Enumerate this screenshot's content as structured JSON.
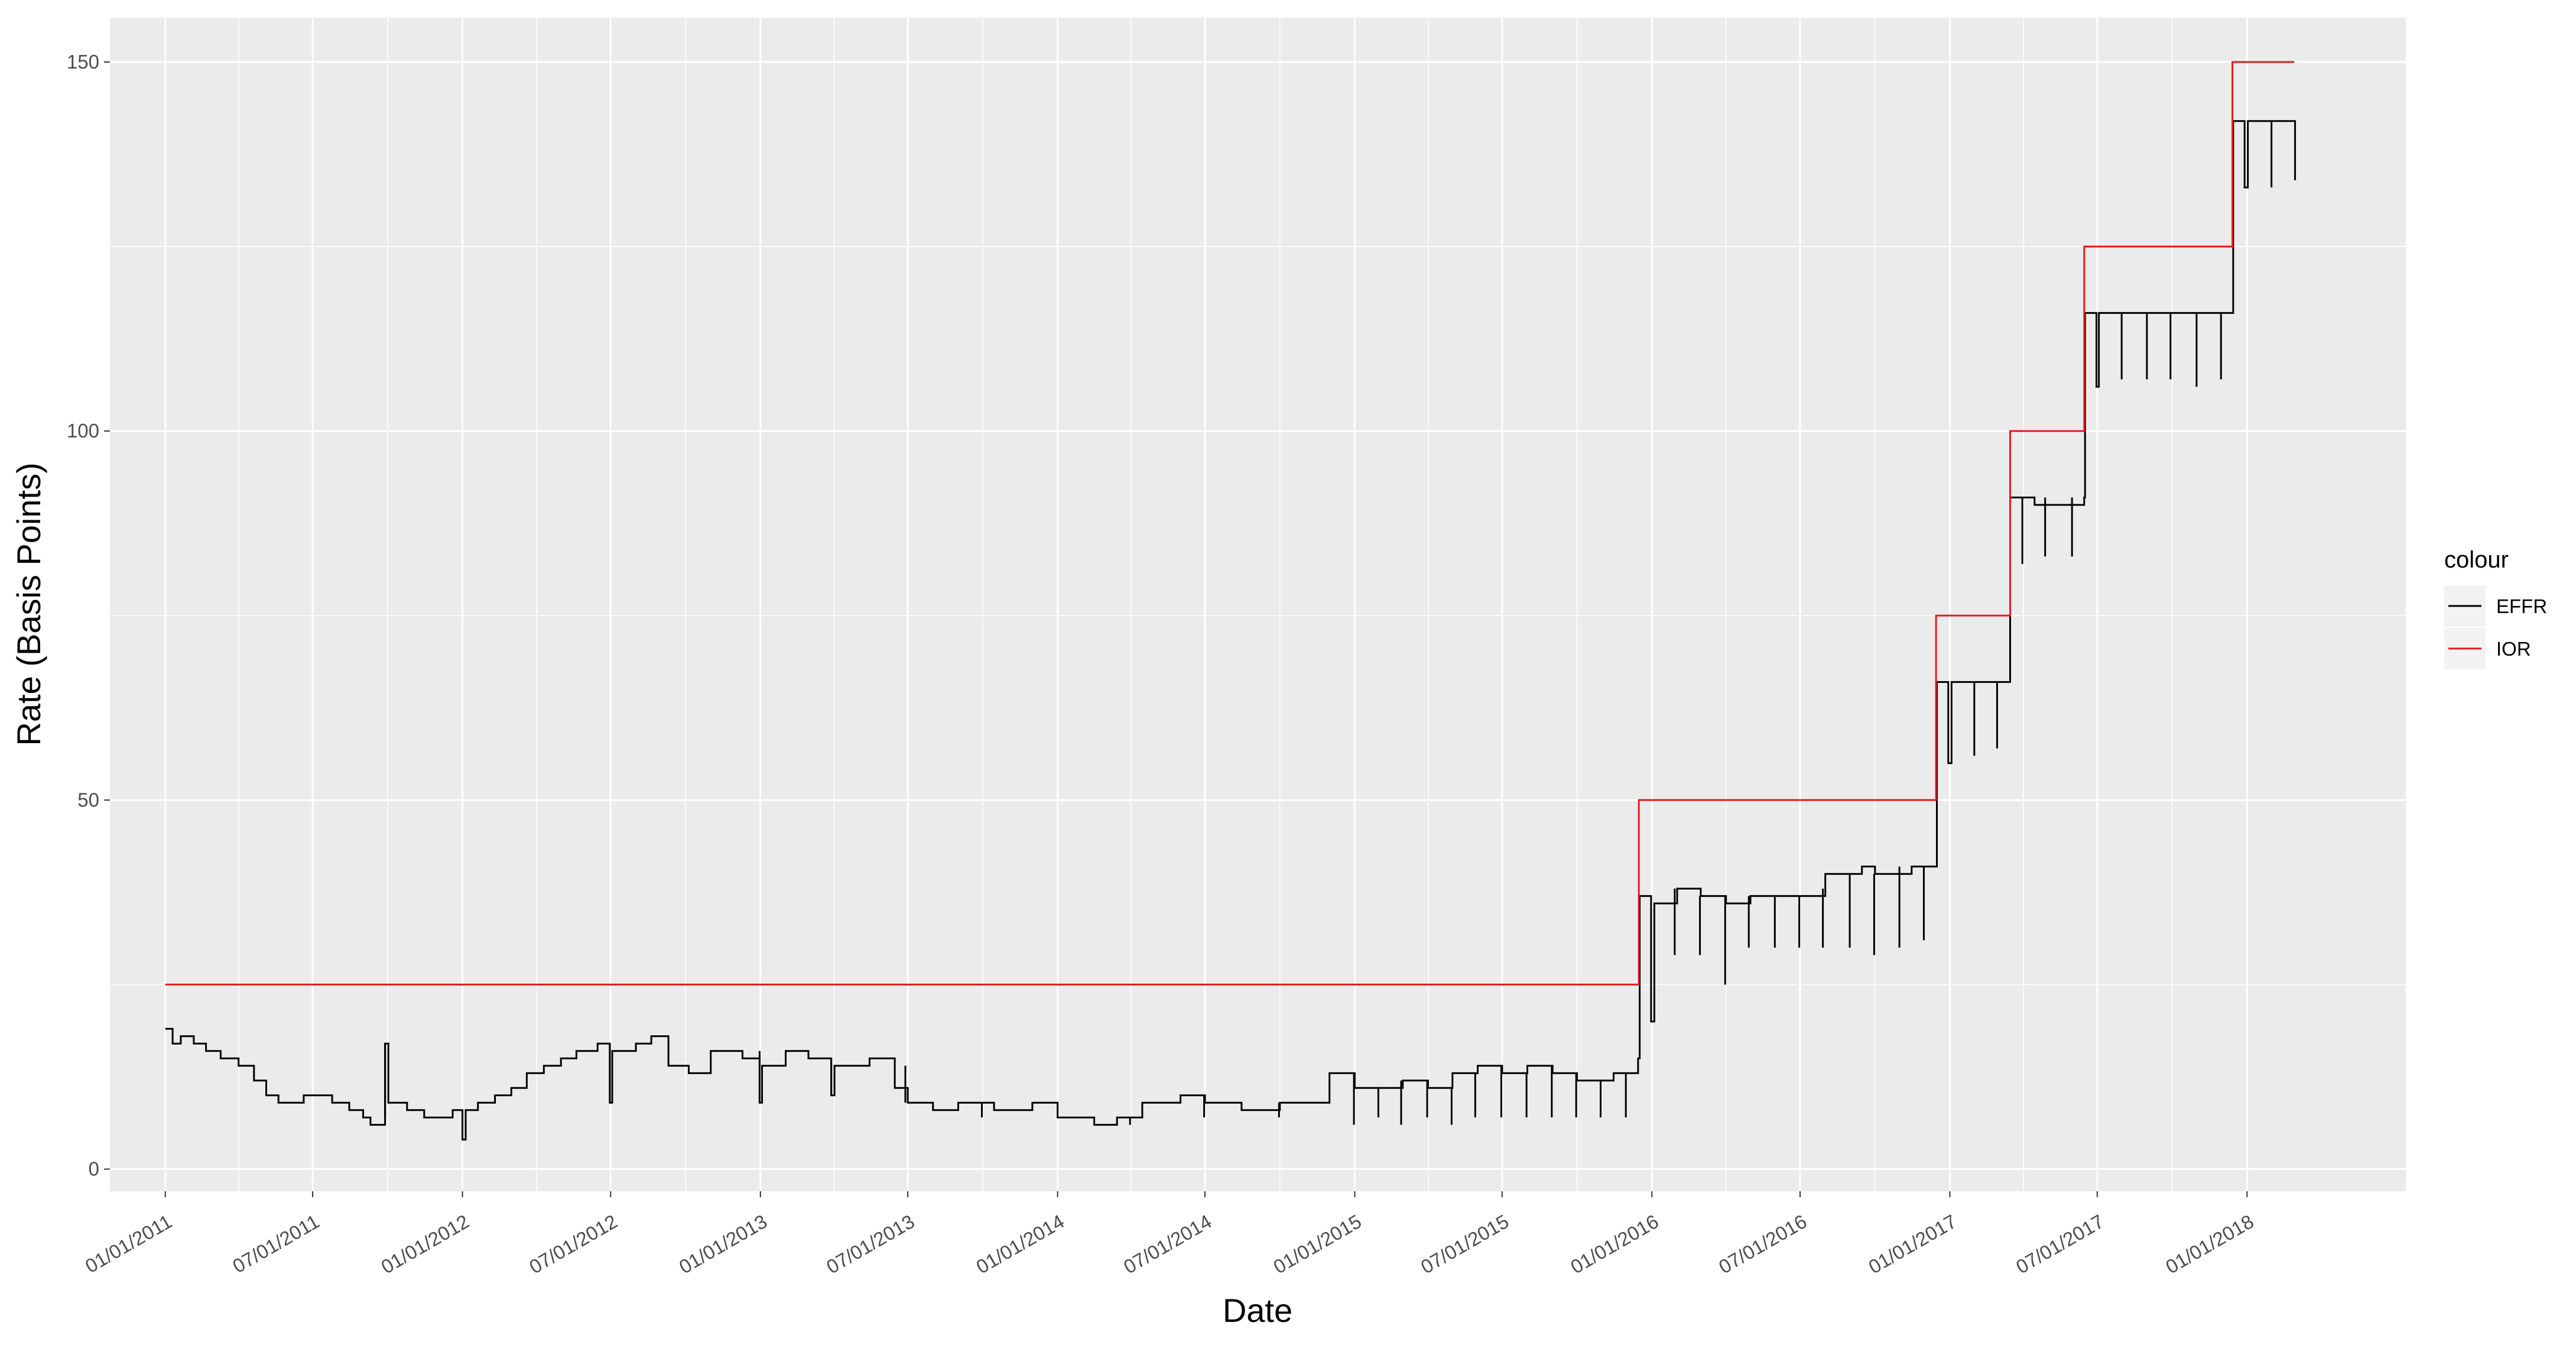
{
  "chart_data": {
    "type": "line",
    "title": "",
    "xlabel": "Date",
    "ylabel": "Rate (Basis Points)",
    "xlim": [
      "2010-10-25",
      "2018-07-15"
    ],
    "ylim": [
      -3,
      156
    ],
    "y_ticks": [
      0,
      50,
      100,
      150
    ],
    "x_ticks": [
      {
        "date": "2011-01-01",
        "label": "01/01/2011"
      },
      {
        "date": "2011-07-01",
        "label": "07/01/2011"
      },
      {
        "date": "2012-01-01",
        "label": "01/01/2012"
      },
      {
        "date": "2012-07-01",
        "label": "07/01/2012"
      },
      {
        "date": "2013-01-01",
        "label": "01/01/2013"
      },
      {
        "date": "2013-07-01",
        "label": "07/01/2013"
      },
      {
        "date": "2014-01-01",
        "label": "01/01/2014"
      },
      {
        "date": "2014-07-01",
        "label": "07/01/2014"
      },
      {
        "date": "2015-01-01",
        "label": "01/01/2015"
      },
      {
        "date": "2015-07-01",
        "label": "07/01/2015"
      },
      {
        "date": "2016-01-01",
        "label": "01/01/2016"
      },
      {
        "date": "2016-07-01",
        "label": "07/01/2016"
      },
      {
        "date": "2017-01-01",
        "label": "01/01/2017"
      },
      {
        "date": "2017-07-01",
        "label": "07/01/2017"
      },
      {
        "date": "2018-01-01",
        "label": "01/01/2018"
      }
    ],
    "grid": true,
    "legend": {
      "title": "colour",
      "position": "right",
      "entries": [
        {
          "name": "EFFR",
          "color": "#000000"
        },
        {
          "name": "IOR",
          "color": "#e41a1c"
        }
      ]
    },
    "series": [
      {
        "name": "IOR",
        "color": "#e41a1c",
        "step": true,
        "points": [
          [
            "2011-01-01",
            25
          ],
          [
            "2015-12-16",
            50
          ],
          [
            "2016-12-15",
            75
          ],
          [
            "2017-03-16",
            100
          ],
          [
            "2017-06-15",
            125
          ],
          [
            "2017-12-14",
            150
          ],
          [
            "2018-02-28",
            150
          ]
        ]
      },
      {
        "name": "EFFR",
        "color": "#000000",
        "step": true,
        "points": [
          [
            "2011-01-01",
            19
          ],
          [
            "2011-01-10",
            17
          ],
          [
            "2011-01-20",
            18
          ],
          [
            "2011-02-05",
            17
          ],
          [
            "2011-02-20",
            16
          ],
          [
            "2011-03-10",
            15
          ],
          [
            "2011-04-01",
            14
          ],
          [
            "2011-04-20",
            12
          ],
          [
            "2011-05-05",
            10
          ],
          [
            "2011-05-20",
            9
          ],
          [
            "2011-06-20",
            10
          ],
          [
            "2011-07-25",
            9
          ],
          [
            "2011-08-15",
            8
          ],
          [
            "2011-09-01",
            7
          ],
          [
            "2011-09-10",
            6
          ],
          [
            "2011-09-28",
            17
          ],
          [
            "2011-10-02",
            9
          ],
          [
            "2011-10-25",
            8
          ],
          [
            "2011-11-15",
            7
          ],
          [
            "2011-12-20",
            8
          ],
          [
            "2012-01-01",
            4
          ],
          [
            "2012-01-05",
            8
          ],
          [
            "2012-01-20",
            9
          ],
          [
            "2012-02-10",
            10
          ],
          [
            "2012-03-01",
            11
          ],
          [
            "2012-03-20",
            13
          ],
          [
            "2012-04-10",
            14
          ],
          [
            "2012-05-01",
            15
          ],
          [
            "2012-05-20",
            16
          ],
          [
            "2012-06-15",
            17
          ],
          [
            "2012-06-30",
            9
          ],
          [
            "2012-07-03",
            16
          ],
          [
            "2012-08-01",
            17
          ],
          [
            "2012-08-20",
            18
          ],
          [
            "2012-09-10",
            14
          ],
          [
            "2012-10-05",
            13
          ],
          [
            "2012-11-01",
            16
          ],
          [
            "2012-12-10",
            15
          ],
          [
            "2012-12-31",
            9
          ],
          [
            "2013-01-03",
            14
          ],
          [
            "2013-02-01",
            16
          ],
          [
            "2013-03-01",
            15
          ],
          [
            "2013-03-29",
            10
          ],
          [
            "2013-04-02",
            14
          ],
          [
            "2013-05-15",
            15
          ],
          [
            "2013-06-15",
            11
          ],
          [
            "2013-07-01",
            9
          ],
          [
            "2013-08-01",
            8
          ],
          [
            "2013-09-01",
            9
          ],
          [
            "2013-10-15",
            8
          ],
          [
            "2013-12-01",
            9
          ],
          [
            "2014-01-01",
            7
          ],
          [
            "2014-02-15",
            6
          ],
          [
            "2014-03-15",
            7
          ],
          [
            "2014-04-15",
            9
          ],
          [
            "2014-06-01",
            10
          ],
          [
            "2014-07-01",
            9
          ],
          [
            "2014-08-15",
            8
          ],
          [
            "2014-10-01",
            9
          ],
          [
            "2014-12-01",
            13
          ],
          [
            "2015-01-01",
            11
          ],
          [
            "2015-03-01",
            12
          ],
          [
            "2015-04-01",
            11
          ],
          [
            "2015-05-01",
            13
          ],
          [
            "2015-06-01",
            14
          ],
          [
            "2015-07-01",
            13
          ],
          [
            "2015-08-01",
            14
          ],
          [
            "2015-09-01",
            13
          ],
          [
            "2015-10-01",
            12
          ],
          [
            "2015-11-15",
            13
          ],
          [
            "2015-12-15",
            15
          ],
          [
            "2015-12-17",
            37
          ],
          [
            "2015-12-31",
            20
          ],
          [
            "2016-01-04",
            36
          ],
          [
            "2016-02-01",
            38
          ],
          [
            "2016-03-01",
            37
          ],
          [
            "2016-04-01",
            36
          ],
          [
            "2016-05-01",
            37
          ],
          [
            "2016-06-01",
            37
          ],
          [
            "2016-08-01",
            40
          ],
          [
            "2016-09-15",
            41
          ],
          [
            "2016-10-01",
            40
          ],
          [
            "2016-11-15",
            41
          ],
          [
            "2016-12-15",
            41
          ],
          [
            "2016-12-16",
            66
          ],
          [
            "2016-12-30",
            55
          ],
          [
            "2017-01-03",
            66
          ],
          [
            "2017-03-16",
            91
          ],
          [
            "2017-04-15",
            90
          ],
          [
            "2017-06-15",
            91
          ],
          [
            "2017-06-16",
            116
          ],
          [
            "2017-06-30",
            106
          ],
          [
            "2017-07-03",
            116
          ],
          [
            "2017-12-14",
            116
          ],
          [
            "2017-12-15",
            142
          ],
          [
            "2017-12-29",
            133
          ],
          [
            "2018-01-02",
            142
          ],
          [
            "2018-02-28",
            142
          ],
          [
            "2018-03-01",
            134
          ]
        ]
      }
    ],
    "dips": [
      [
        "2011-09-28",
        7,
        17
      ],
      [
        "2012-06-30",
        9,
        17
      ],
      [
        "2012-12-31",
        9,
        16
      ],
      [
        "2013-03-29",
        10,
        15
      ],
      [
        "2013-06-28",
        9,
        14
      ],
      [
        "2013-09-30",
        7,
        9
      ],
      [
        "2014-03-31",
        6,
        7
      ],
      [
        "2014-06-30",
        7,
        10
      ],
      [
        "2014-09-30",
        7,
        9
      ],
      [
        "2014-12-31",
        6,
        13
      ],
      [
        "2015-01-30",
        7,
        11
      ],
      [
        "2015-02-27",
        6,
        12
      ],
      [
        "2015-03-31",
        7,
        12
      ],
      [
        "2015-04-30",
        6,
        11
      ],
      [
        "2015-05-29",
        7,
        13
      ],
      [
        "2015-06-30",
        7,
        14
      ],
      [
        "2015-07-31",
        7,
        13
      ],
      [
        "2015-08-31",
        7,
        14
      ],
      [
        "2015-09-30",
        7,
        13
      ],
      [
        "2015-10-30",
        7,
        12
      ],
      [
        "2015-11-30",
        7,
        13
      ],
      [
        "2016-01-29",
        29,
        38
      ],
      [
        "2016-02-29",
        29,
        37
      ],
      [
        "2016-03-31",
        25,
        37
      ],
      [
        "2016-04-29",
        30,
        37
      ],
      [
        "2016-05-31",
        30,
        37
      ],
      [
        "2016-06-30",
        30,
        37
      ],
      [
        "2016-07-29",
        30,
        38
      ],
      [
        "2016-08-31",
        30,
        40
      ],
      [
        "2016-09-30",
        29,
        40
      ],
      [
        "2016-10-31",
        30,
        41
      ],
      [
        "2016-11-30",
        31,
        41
      ],
      [
        "2017-01-31",
        56,
        66
      ],
      [
        "2017-02-28",
        57,
        66
      ],
      [
        "2017-03-31",
        82,
        91
      ],
      [
        "2017-04-28",
        83,
        91
      ],
      [
        "2017-05-31",
        83,
        91
      ],
      [
        "2017-07-31",
        107,
        116
      ],
      [
        "2017-08-31",
        107,
        116
      ],
      [
        "2017-09-29",
        107,
        116
      ],
      [
        "2017-10-31",
        106,
        116
      ],
      [
        "2017-11-30",
        107,
        116
      ],
      [
        "2018-01-31",
        133,
        142
      ]
    ]
  }
}
